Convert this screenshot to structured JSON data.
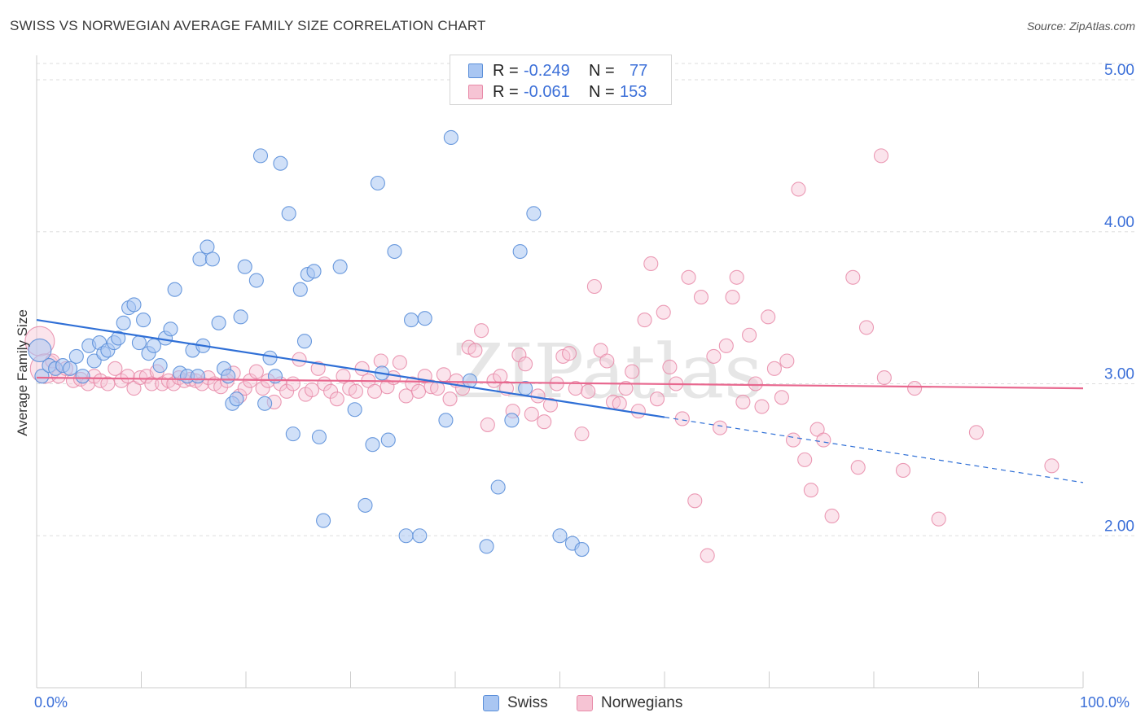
{
  "title": "SWISS VS NORWEGIAN AVERAGE FAMILY SIZE CORRELATION CHART",
  "source": "Source: ZipAtlas.com",
  "watermark": "ZIPatlas",
  "legend_top": [
    {
      "r_label": "R =",
      "r_value": "-0.249",
      "n_label": "N =",
      "n_value": "77"
    },
    {
      "r_label": "R =",
      "r_value": "-0.061",
      "n_label": "N =",
      "n_value": "153"
    }
  ],
  "colors": {
    "swiss_fill": "#a9c6f2",
    "swiss_stroke": "#5b8fd9",
    "swiss_line": "#2f6fd6",
    "norw_fill": "#f6c4d4",
    "norw_stroke": "#e88aa8",
    "norw_line": "#e8688f",
    "axis_text": "#3b6fd8",
    "grid": "#dddddd"
  },
  "chart_data": {
    "type": "scatter",
    "title": "SWISS VS NORWEGIAN AVERAGE FAMILY SIZE CORRELATION CHART",
    "xlabel": "",
    "ylabel": "Average Family Size",
    "xlim": [
      0,
      100
    ],
    "ylim": [
      1.0,
      5.15
    ],
    "x_tick_labels": [
      "0.0%",
      "100.0%"
    ],
    "y_ticks": [
      2.0,
      3.0,
      4.0,
      5.0
    ],
    "y_tick_labels": [
      "2.00",
      "3.00",
      "4.00",
      "5.00"
    ],
    "legend": [
      "Swiss",
      "Norwegians"
    ],
    "series": [
      {
        "name": "Swiss",
        "trend": {
          "x0": 0,
          "y0": 3.42,
          "x1": 60,
          "y1": 2.78,
          "dash_to_x": 100,
          "dash_to_y": 2.35
        },
        "points": [
          [
            0.3,
            3.22
          ],
          [
            0.5,
            3.05
          ],
          [
            1.2,
            3.12
          ],
          [
            1.8,
            3.1
          ],
          [
            2.5,
            3.12
          ],
          [
            3.2,
            3.1
          ],
          [
            3.8,
            3.18
          ],
          [
            4.4,
            3.05
          ],
          [
            5.0,
            3.25
          ],
          [
            5.5,
            3.15
          ],
          [
            6.0,
            3.27
          ],
          [
            6.4,
            3.2
          ],
          [
            6.8,
            3.22
          ],
          [
            7.4,
            3.27
          ],
          [
            7.8,
            3.3
          ],
          [
            8.3,
            3.4
          ],
          [
            8.8,
            3.5
          ],
          [
            9.3,
            3.52
          ],
          [
            9.8,
            3.27
          ],
          [
            10.2,
            3.42
          ],
          [
            10.7,
            3.2
          ],
          [
            11.2,
            3.25
          ],
          [
            11.8,
            3.12
          ],
          [
            12.3,
            3.3
          ],
          [
            12.8,
            3.36
          ],
          [
            13.2,
            3.62
          ],
          [
            13.7,
            3.07
          ],
          [
            14.4,
            3.05
          ],
          [
            14.9,
            3.22
          ],
          [
            15.4,
            3.05
          ],
          [
            15.6,
            3.82
          ],
          [
            15.9,
            3.25
          ],
          [
            16.3,
            3.9
          ],
          [
            16.8,
            3.82
          ],
          [
            17.4,
            3.4
          ],
          [
            17.9,
            3.1
          ],
          [
            18.3,
            3.05
          ],
          [
            18.7,
            2.87
          ],
          [
            19.1,
            2.9
          ],
          [
            19.5,
            3.44
          ],
          [
            19.9,
            3.77
          ],
          [
            21.0,
            3.68
          ],
          [
            21.4,
            4.5
          ],
          [
            21.8,
            2.87
          ],
          [
            22.3,
            3.17
          ],
          [
            22.8,
            3.05
          ],
          [
            23.3,
            4.45
          ],
          [
            24.1,
            4.12
          ],
          [
            24.5,
            2.67
          ],
          [
            25.2,
            3.62
          ],
          [
            25.6,
            3.28
          ],
          [
            25.9,
            3.72
          ],
          [
            26.5,
            3.74
          ],
          [
            27.0,
            2.65
          ],
          [
            27.4,
            2.1
          ],
          [
            29.0,
            3.77
          ],
          [
            30.4,
            2.83
          ],
          [
            31.4,
            2.2
          ],
          [
            32.1,
            2.6
          ],
          [
            32.6,
            4.32
          ],
          [
            33.0,
            3.07
          ],
          [
            33.6,
            2.63
          ],
          [
            34.2,
            3.87
          ],
          [
            35.3,
            2.0
          ],
          [
            35.8,
            3.42
          ],
          [
            36.6,
            2.0
          ],
          [
            37.1,
            3.43
          ],
          [
            39.1,
            2.76
          ],
          [
            39.6,
            4.62
          ],
          [
            41.4,
            3.02
          ],
          [
            43.0,
            1.93
          ],
          [
            44.1,
            2.32
          ],
          [
            45.4,
            2.76
          ],
          [
            46.2,
            3.87
          ],
          [
            46.7,
            2.97
          ],
          [
            47.5,
            4.12
          ],
          [
            50.0,
            2.0
          ],
          [
            51.2,
            1.95
          ],
          [
            52.1,
            1.91
          ]
        ]
      },
      {
        "name": "Norwegians",
        "trend": {
          "x0": 0,
          "y0": 3.04,
          "x1": 100,
          "y1": 2.97
        },
        "points": [
          [
            0.3,
            3.28
          ],
          [
            0.8,
            3.1
          ],
          [
            1.5,
            3.15
          ],
          [
            2.1,
            3.05
          ],
          [
            2.8,
            3.1
          ],
          [
            3.5,
            3.02
          ],
          [
            4.2,
            3.03
          ],
          [
            4.9,
            3.0
          ],
          [
            5.5,
            3.05
          ],
          [
            6.1,
            3.02
          ],
          [
            6.8,
            3.0
          ],
          [
            7.5,
            3.1
          ],
          [
            8.1,
            3.02
          ],
          [
            8.7,
            3.05
          ],
          [
            9.3,
            2.97
          ],
          [
            9.9,
            3.04
          ],
          [
            10.5,
            3.05
          ],
          [
            11.0,
            3.0
          ],
          [
            11.5,
            3.08
          ],
          [
            12.0,
            3.0
          ],
          [
            12.6,
            3.02
          ],
          [
            13.1,
            3.0
          ],
          [
            13.6,
            3.04
          ],
          [
            14.1,
            3.02
          ],
          [
            14.7,
            3.03
          ],
          [
            15.2,
            3.02
          ],
          [
            15.8,
            3.0
          ],
          [
            16.4,
            3.04
          ],
          [
            17.0,
            3.0
          ],
          [
            17.6,
            2.98
          ],
          [
            18.2,
            3.02
          ],
          [
            18.8,
            3.07
          ],
          [
            19.4,
            2.92
          ],
          [
            19.9,
            2.97
          ],
          [
            20.4,
            3.02
          ],
          [
            21.0,
            3.08
          ],
          [
            21.6,
            2.97
          ],
          [
            22.1,
            3.02
          ],
          [
            22.7,
            2.88
          ],
          [
            23.3,
            3.0
          ],
          [
            23.9,
            2.95
          ],
          [
            24.5,
            3.0
          ],
          [
            25.1,
            3.16
          ],
          [
            25.7,
            2.93
          ],
          [
            26.3,
            2.96
          ],
          [
            26.9,
            3.1
          ],
          [
            27.5,
            3.0
          ],
          [
            28.1,
            2.95
          ],
          [
            28.7,
            2.9
          ],
          [
            29.3,
            3.05
          ],
          [
            29.9,
            2.97
          ],
          [
            30.5,
            2.95
          ],
          [
            31.1,
            3.1
          ],
          [
            31.7,
            3.02
          ],
          [
            32.3,
            2.95
          ],
          [
            32.9,
            3.15
          ],
          [
            33.5,
            2.98
          ],
          [
            34.1,
            3.04
          ],
          [
            34.7,
            3.14
          ],
          [
            35.3,
            2.92
          ],
          [
            35.9,
            3.0
          ],
          [
            36.5,
            2.95
          ],
          [
            37.1,
            3.05
          ],
          [
            37.7,
            2.98
          ],
          [
            38.3,
            2.97
          ],
          [
            38.9,
            3.06
          ],
          [
            39.5,
            2.9
          ],
          [
            40.1,
            3.02
          ],
          [
            40.7,
            2.97
          ],
          [
            41.3,
            3.24
          ],
          [
            41.9,
            3.22
          ],
          [
            42.5,
            3.35
          ],
          [
            43.1,
            2.73
          ],
          [
            43.7,
            3.02
          ],
          [
            44.3,
            3.05
          ],
          [
            44.9,
            2.97
          ],
          [
            45.5,
            2.82
          ],
          [
            46.1,
            3.19
          ],
          [
            46.7,
            3.13
          ],
          [
            47.3,
            2.8
          ],
          [
            47.9,
            2.92
          ],
          [
            48.5,
            2.75
          ],
          [
            49.1,
            2.86
          ],
          [
            49.7,
            3.0
          ],
          [
            50.3,
            3.18
          ],
          [
            50.9,
            3.2
          ],
          [
            51.5,
            2.97
          ],
          [
            52.1,
            2.67
          ],
          [
            52.7,
            2.95
          ],
          [
            53.3,
            3.64
          ],
          [
            53.9,
            3.22
          ],
          [
            54.5,
            3.15
          ],
          [
            55.1,
            2.88
          ],
          [
            55.7,
            2.87
          ],
          [
            56.3,
            2.97
          ],
          [
            56.9,
            3.08
          ],
          [
            57.5,
            2.82
          ],
          [
            58.1,
            3.42
          ],
          [
            58.7,
            3.79
          ],
          [
            59.3,
            2.9
          ],
          [
            59.9,
            3.47
          ],
          [
            60.5,
            3.11
          ],
          [
            61.1,
            3.0
          ],
          [
            61.7,
            2.77
          ],
          [
            62.3,
            3.7
          ],
          [
            62.9,
            2.23
          ],
          [
            63.5,
            3.57
          ],
          [
            64.1,
            1.87
          ],
          [
            64.7,
            3.18
          ],
          [
            65.3,
            2.71
          ],
          [
            65.9,
            3.25
          ],
          [
            66.5,
            3.57
          ],
          [
            66.9,
            3.7
          ],
          [
            67.5,
            2.88
          ],
          [
            68.1,
            3.32
          ],
          [
            68.7,
            3.0
          ],
          [
            69.3,
            2.85
          ],
          [
            69.9,
            3.44
          ],
          [
            70.5,
            3.1
          ],
          [
            71.2,
            2.91
          ],
          [
            71.7,
            3.15
          ],
          [
            72.3,
            2.63
          ],
          [
            72.8,
            4.28
          ],
          [
            73.4,
            2.5
          ],
          [
            74.0,
            2.3
          ],
          [
            74.6,
            2.7
          ],
          [
            75.2,
            2.63
          ],
          [
            76.0,
            2.13
          ],
          [
            78.0,
            3.7
          ],
          [
            78.5,
            2.45
          ],
          [
            79.3,
            3.37
          ],
          [
            80.7,
            4.5
          ],
          [
            81.0,
            3.04
          ],
          [
            82.8,
            2.43
          ],
          [
            83.9,
            2.97
          ],
          [
            86.2,
            2.11
          ],
          [
            89.8,
            2.68
          ],
          [
            97.0,
            2.46
          ]
        ]
      }
    ]
  }
}
